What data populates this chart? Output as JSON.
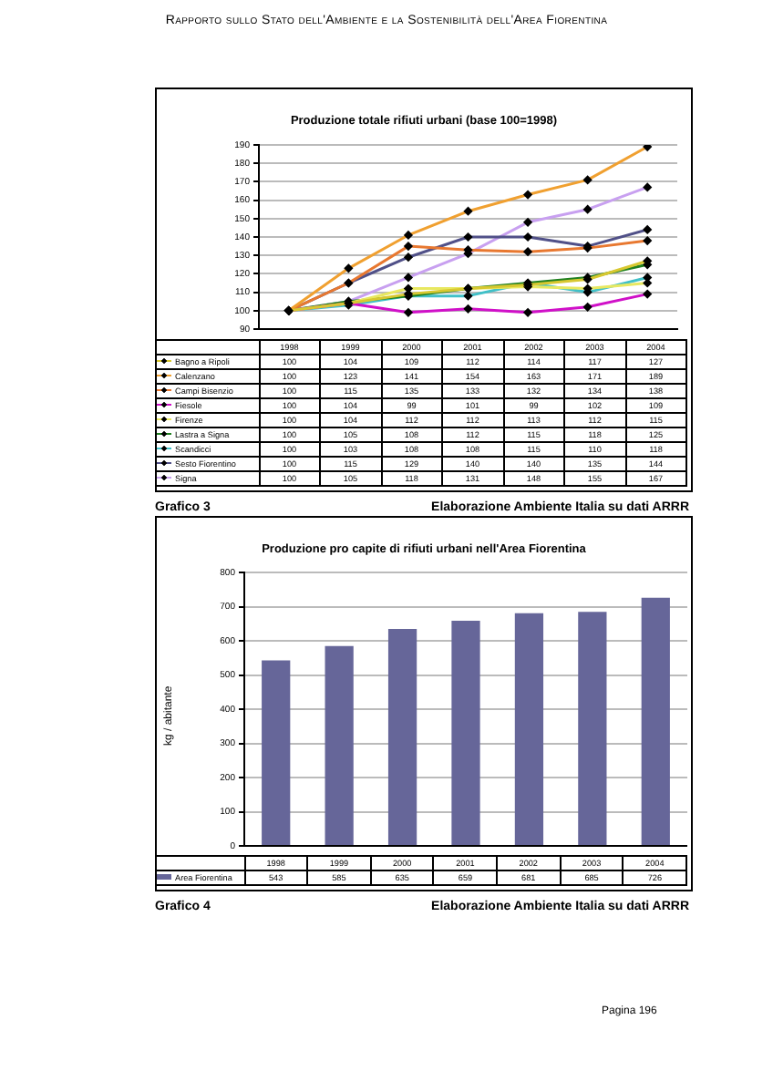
{
  "chart_data": [
    {
      "type": "line",
      "title": "Produzione totale rifiuti urbani (base 100=1998)",
      "categories": [
        "1998",
        "1999",
        "2000",
        "2001",
        "2002",
        "2003",
        "2004"
      ],
      "series": [
        {
          "name": "Bagno a Ripoli",
          "color": "#d8c830",
          "values": [
            100,
            104,
            109,
            112,
            114,
            117,
            127
          ]
        },
        {
          "name": "Calenzano",
          "color": "#f0a030",
          "values": [
            100,
            123,
            141,
            154,
            163,
            171,
            189
          ]
        },
        {
          "name": "Campi Bisenzio",
          "color": "#e87830",
          "values": [
            100,
            115,
            135,
            133,
            132,
            134,
            138
          ]
        },
        {
          "name": "Fiesole",
          "color": "#d010c8",
          "values": [
            100,
            104,
            99,
            101,
            99,
            102,
            109
          ]
        },
        {
          "name": "Firenze",
          "color": "#e8e860",
          "values": [
            100,
            104,
            112,
            112,
            113,
            112,
            115
          ]
        },
        {
          "name": "Lastra a Signa",
          "color": "#208020",
          "values": [
            100,
            105,
            108,
            112,
            115,
            118,
            125
          ]
        },
        {
          "name": "Scandicci",
          "color": "#40c0c8",
          "values": [
            100,
            103,
            108,
            108,
            115,
            110,
            118
          ]
        },
        {
          "name": "Sesto Fiorentino",
          "color": "#505088",
          "values": [
            100,
            115,
            129,
            140,
            140,
            135,
            144
          ]
        },
        {
          "name": "Signa",
          "color": "#c8a0f0",
          "values": [
            100,
            105,
            118,
            131,
            148,
            155,
            167
          ]
        }
      ],
      "ylim": [
        90,
        190
      ],
      "yticks": [
        90,
        100,
        110,
        120,
        130,
        140,
        150,
        160,
        170,
        180,
        190
      ],
      "grid": "y",
      "legend": "bottom",
      "tick_labels": "y",
      "marker": "diamond",
      "line_style": "solid",
      "data_labels": true,
      "annotations": [
        "Grafico 3",
        "Elaborazione Ambiente Italia su dati ARRR",
        "Rapporto sullo Stato dell'Ambiente e la Sostenibilità dell'Area Fiorentina"
      ]
    },
    {
      "type": "bar",
      "title": "Produzione pro capite di rifiuti urbani nell'Area Fiorentina",
      "categories": [
        "1998",
        "1999",
        "2000",
        "2001",
        "2002",
        "2003",
        "2004"
      ],
      "ylabel": "kg / abitante",
      "series": [
        {
          "name": "Area Fiorentina",
          "color": "#666699",
          "values": [
            543,
            585,
            635,
            659,
            681,
            685,
            726
          ]
        }
      ],
      "ylim": [
        0,
        800
      ],
      "yticks": [
        0,
        100,
        200,
        300,
        400,
        500,
        600,
        700,
        800
      ],
      "grid": "y",
      "legend": "bottom",
      "tick_labels": "y",
      "data_labels": true,
      "annotations": [
        "Grafico 4",
        "Elaborazione Ambiente Italia su dati ARRR",
        "Pagina 196"
      ]
    }
  ]
}
